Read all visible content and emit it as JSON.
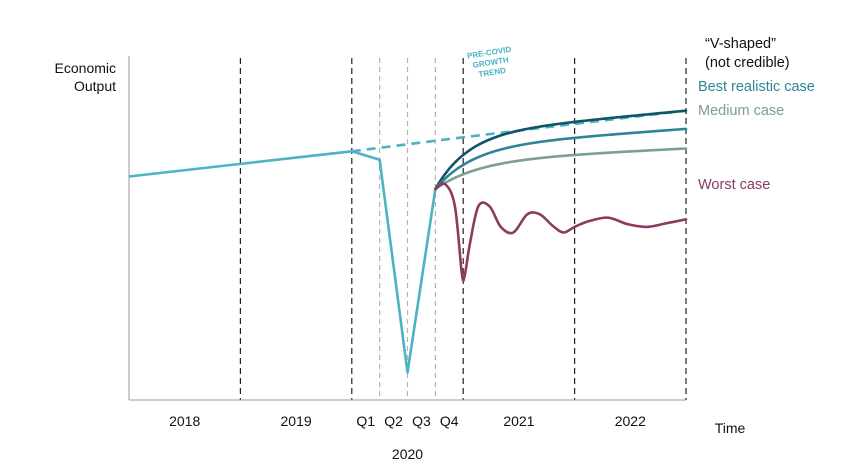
{
  "chart_data": {
    "type": "line",
    "title": "",
    "ylabel": [
      "Economic",
      "Output"
    ],
    "xlabel": "Time",
    "year_label": "2020",
    "annotation": [
      "PRE-COVID",
      "GROWTH",
      "TREND"
    ],
    "x_periods": [
      {
        "label": "2018",
        "start": 0,
        "end": 4
      },
      {
        "label": "2019",
        "start": 4,
        "end": 8
      },
      {
        "label": "Q1",
        "start": 8,
        "end": 9
      },
      {
        "label": "Q2",
        "start": 9,
        "end": 10
      },
      {
        "label": "Q3",
        "start": 10,
        "end": 11
      },
      {
        "label": "Q4",
        "start": 11,
        "end": 12
      },
      {
        "label": "2021",
        "start": 12,
        "end": 16
      },
      {
        "label": "2022",
        "start": 16,
        "end": 20
      }
    ],
    "dividers": [
      {
        "x": 4,
        "style": "dark"
      },
      {
        "x": 8,
        "style": "dark"
      },
      {
        "x": 9,
        "style": "light"
      },
      {
        "x": 10,
        "style": "light"
      },
      {
        "x": 11,
        "style": "light"
      },
      {
        "x": 12,
        "style": "dark"
      },
      {
        "x": 16,
        "style": "dark"
      },
      {
        "x": 20,
        "style": "dark"
      }
    ],
    "xlim": [
      0,
      20
    ],
    "ylim": [
      0,
      100
    ],
    "colors": {
      "actual": "#4bb3c4",
      "v_shaped": "#0f5468",
      "best": "#2d8596",
      "medium": "#7aa18d",
      "worst": "#8b3a62",
      "divider_dark": "#222222",
      "divider_light": "#b5b5b5",
      "axis": "#999999",
      "text": "#111111"
    },
    "series": [
      {
        "key": "actual",
        "dash": false,
        "points": [
          [
            0,
            78.5
          ],
          [
            8,
            87.5
          ],
          [
            9,
            84.5
          ],
          [
            10,
            8.5
          ],
          [
            11,
            74
          ]
        ]
      },
      {
        "key": "trend",
        "dash": true,
        "points": [
          [
            8,
            87.5
          ],
          [
            12,
            92.5
          ],
          [
            16,
            97.3
          ],
          [
            20,
            102
          ]
        ]
      }
    ],
    "scenarios": [
      {
        "key": "v_shaped",
        "name": [
          "“V-shaped”",
          "(not credible)"
        ],
        "shape": "recovery",
        "start": 74,
        "end": 102,
        "k": 2.4
      },
      {
        "key": "best",
        "name": [
          "Best realistic case"
        ],
        "shape": "recovery",
        "start": 74,
        "end": 95.5,
        "k": 2.1
      },
      {
        "key": "medium",
        "name": [
          "Medium case"
        ],
        "shape": "recovery",
        "start": 74,
        "end": 88.5,
        "k": 1.8
      },
      {
        "key": "worst",
        "name": [
          "Worst case"
        ],
        "shape": "oscillating",
        "points": [
          [
            11,
            74
          ],
          [
            11.35,
            75.8
          ],
          [
            11.7,
            68
          ],
          [
            11.95,
            44
          ],
          [
            12.05,
            43
          ],
          [
            12.25,
            55
          ],
          [
            12.55,
            68
          ],
          [
            12.95,
            67.8
          ],
          [
            13.35,
            60.5
          ],
          [
            13.8,
            58.5
          ],
          [
            14.3,
            65
          ],
          [
            14.75,
            65
          ],
          [
            15.2,
            61
          ],
          [
            15.6,
            58.5
          ],
          [
            16,
            60.5
          ],
          [
            16.5,
            62.5
          ],
          [
            17.2,
            63.8
          ],
          [
            17.9,
            61.5
          ],
          [
            18.6,
            60.5
          ],
          [
            19.3,
            61.8
          ],
          [
            20,
            63.2
          ]
        ]
      }
    ]
  }
}
